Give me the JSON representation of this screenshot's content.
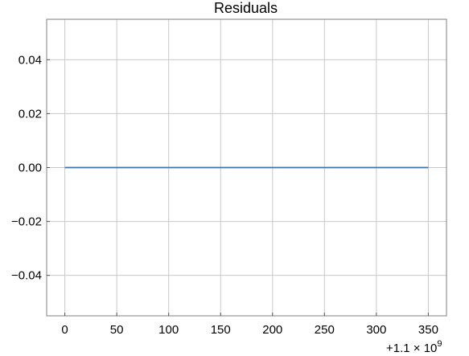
{
  "chart_data": {
    "type": "line",
    "title": "Residuals",
    "xlabel": "",
    "ylabel": "",
    "x_offset_label": "+1.1 × 10",
    "x_offset_exponent": "9",
    "xlim": [
      -17.5,
      367.5
    ],
    "ylim": [
      -0.055,
      0.055
    ],
    "x_ticks": [
      0,
      50,
      100,
      150,
      200,
      250,
      300,
      350
    ],
    "x_tick_labels": [
      "0",
      "50",
      "100",
      "150",
      "200",
      "250",
      "300",
      "350"
    ],
    "y_ticks": [
      0.04,
      0.02,
      0.0,
      -0.02,
      -0.04
    ],
    "y_tick_labels": [
      "0.04",
      "0.02",
      "0.00",
      "−0.02",
      "−0.04"
    ],
    "grid": true,
    "series": [
      {
        "color": "#3a75af",
        "x": [
          0,
          50,
          100,
          150,
          200,
          250,
          300,
          350
        ],
        "y": [
          0,
          0,
          0,
          0,
          0,
          0,
          0,
          0
        ]
      }
    ]
  }
}
